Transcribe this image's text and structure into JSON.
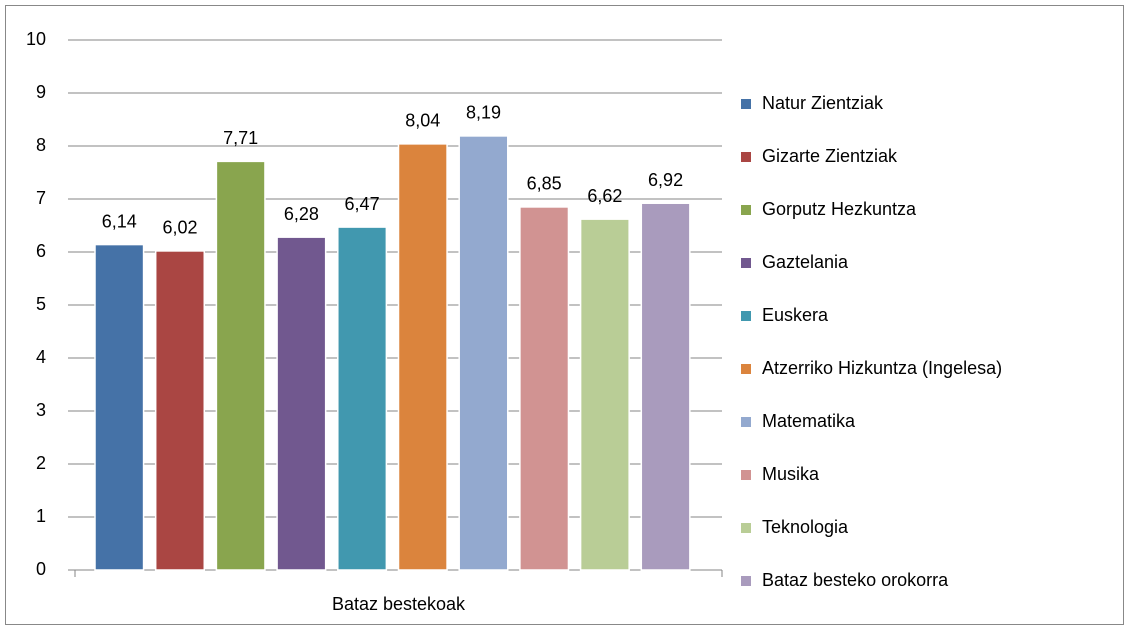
{
  "chart_data": {
    "type": "bar",
    "categories": [
      "Bataz bestekoak"
    ],
    "series": [
      {
        "name": "Natur Zientziak",
        "color": "#4572a7",
        "values": [
          6.14
        ],
        "value_labels": [
          "6,14"
        ]
      },
      {
        "name": "Gizarte Zientziak",
        "color": "#aa4643",
        "values": [
          6.02
        ],
        "value_labels": [
          "6,02"
        ]
      },
      {
        "name": "Gorputz Hezkuntza",
        "color": "#89a54e",
        "values": [
          7.71
        ],
        "value_labels": [
          "7,71"
        ]
      },
      {
        "name": "Gaztelania",
        "color": "#71588f",
        "values": [
          6.28
        ],
        "value_labels": [
          "6,28"
        ]
      },
      {
        "name": "Euskera",
        "color": "#4198af",
        "values": [
          6.47
        ],
        "value_labels": [
          "6,47"
        ]
      },
      {
        "name": "Atzerriko Hizkuntza (Ingelesa)",
        "color": "#db843d",
        "values": [
          8.04
        ],
        "value_labels": [
          "8,04"
        ]
      },
      {
        "name": "Matematika",
        "color": "#93a9cf",
        "values": [
          8.19
        ],
        "value_labels": [
          "8,19"
        ]
      },
      {
        "name": "Musika",
        "color": "#d19392",
        "values": [
          6.85
        ],
        "value_labels": [
          "6,85"
        ]
      },
      {
        "name": "Teknologia",
        "color": "#b9cd96",
        "values": [
          6.62
        ],
        "value_labels": [
          "6,62"
        ]
      },
      {
        "name": "Bataz besteko orokorra",
        "color": "#a99bbd",
        "values": [
          6.92
        ],
        "value_labels": [
          "6,92"
        ]
      }
    ],
    "ylim": [
      0,
      10
    ],
    "yticks": [
      0,
      1,
      2,
      3,
      4,
      5,
      6,
      7,
      8,
      9,
      10
    ],
    "grid": true,
    "legend": "right"
  }
}
